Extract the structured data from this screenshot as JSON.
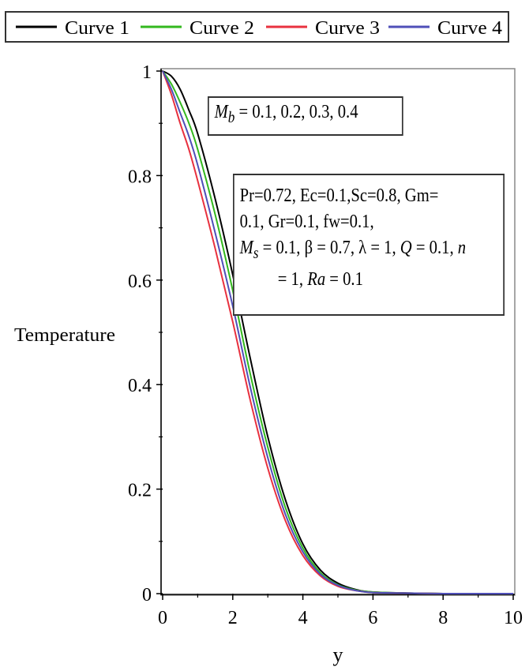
{
  "chart_data": {
    "type": "line",
    "xlabel": "y",
    "ylabel": "Temperature",
    "xlim": [
      0,
      10
    ],
    "ylim": [
      0,
      1
    ],
    "xticks": [
      "0",
      "2",
      "4",
      "6",
      "8",
      "10"
    ],
    "yticks": [
      "0",
      "0.2",
      "0.4",
      "0.6",
      "0.8",
      "1"
    ],
    "grid": false,
    "legend_position": "top",
    "series": [
      {
        "name": "Curve 1",
        "color": "#000000",
        "x": [
          0,
          0.25,
          0.5,
          0.75,
          1,
          1.5,
          2,
          2.5,
          3,
          3.5,
          4,
          4.5,
          5,
          5.5,
          6,
          7,
          8,
          9,
          10
        ],
        "y": [
          1.0,
          0.99,
          0.965,
          0.925,
          0.88,
          0.755,
          0.61,
          0.45,
          0.3,
          0.18,
          0.095,
          0.045,
          0.02,
          0.008,
          0.003,
          0.001,
          0.0,
          0.0,
          0.0
        ]
      },
      {
        "name": "Curve 2",
        "color": "#33b81e",
        "x": [
          0,
          0.25,
          0.5,
          0.75,
          1,
          1.5,
          2,
          2.5,
          3,
          3.5,
          4,
          4.5,
          5,
          5.5,
          6,
          7,
          8,
          9,
          10
        ],
        "y": [
          1.0,
          0.975,
          0.94,
          0.9,
          0.85,
          0.725,
          0.58,
          0.42,
          0.28,
          0.165,
          0.087,
          0.04,
          0.017,
          0.007,
          0.003,
          0.001,
          0.0,
          0.0,
          0.0
        ]
      },
      {
        "name": "Curve 3",
        "color": "#e8313f",
        "x": [
          0,
          0.25,
          0.5,
          0.75,
          1,
          1.5,
          2,
          2.5,
          3,
          3.5,
          4,
          4.5,
          5,
          5.5,
          6,
          7,
          8,
          9,
          10
        ],
        "y": [
          1.0,
          0.955,
          0.9,
          0.85,
          0.79,
          0.66,
          0.52,
          0.37,
          0.24,
          0.14,
          0.073,
          0.034,
          0.014,
          0.006,
          0.002,
          0.001,
          0.0,
          0.0,
          0.0
        ]
      },
      {
        "name": "Curve 4",
        "color": "#4f4fb8",
        "x": [
          0,
          0.25,
          0.5,
          0.75,
          1,
          1.5,
          2,
          2.5,
          3,
          3.5,
          4,
          4.5,
          5,
          5.5,
          6,
          7,
          8,
          9,
          10
        ],
        "y": [
          1.0,
          0.965,
          0.92,
          0.875,
          0.82,
          0.69,
          0.55,
          0.395,
          0.26,
          0.152,
          0.08,
          0.037,
          0.016,
          0.006,
          0.002,
          0.001,
          0.0,
          0.0,
          0.0
        ]
      }
    ],
    "annotations": {
      "box1": {
        "lhs": "M",
        "sub": "b",
        "rhs": " = 0.1, 0.2, 0.3, 0.4"
      },
      "box2": {
        "line1": "Pr=0.72, Ec=0.1,Sc=0.8, Gm=",
        "line2": "0.1, Gr=0.1, fw=0.1,",
        "line3_ms": "M",
        "line3_ms_sub": "s",
        "line3_a": " = 0.1, β = 0.7, λ = 1, ",
        "line3_q": "Q",
        "line3_b": " = 0.1, ",
        "line3_n": "n",
        "line4_a": "= 1, ",
        "line4_ra": "Ra",
        "line4_b": " = 0.1"
      }
    }
  }
}
